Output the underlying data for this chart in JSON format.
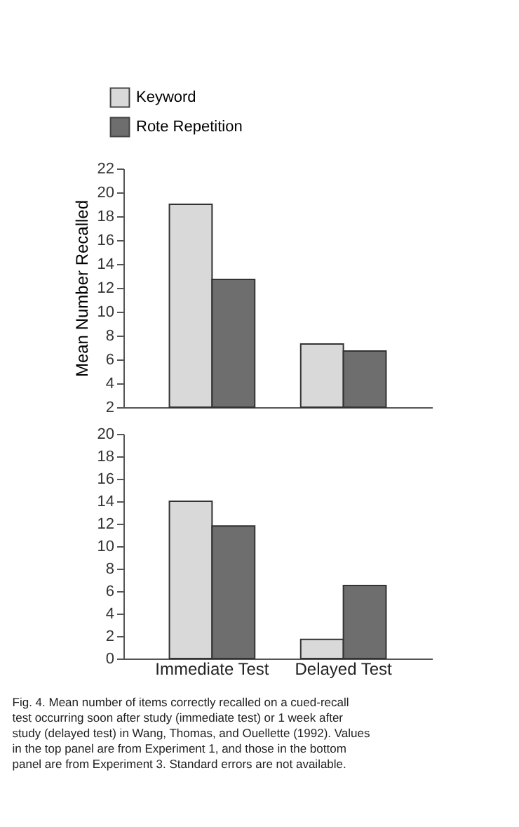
{
  "chart_data": [
    {
      "type": "bar",
      "ylabel": "Mean Number Recalled",
      "categories": [
        null,
        null
      ],
      "series": [
        {
          "name": "Keyword",
          "color": "#d9d9d9",
          "values": [
            19.0,
            7.3
          ]
        },
        {
          "name": "Rote Repetition",
          "color": "#6e6e6e",
          "values": [
            12.7,
            6.7
          ]
        }
      ],
      "ylim": [
        2,
        22
      ],
      "yticks": [
        2,
        4,
        6,
        8,
        10,
        12,
        14,
        16,
        18,
        20,
        22
      ],
      "grid": false,
      "legend": "top left",
      "tick_labels": "y"
    },
    {
      "type": "bar",
      "categories": [
        "Immediate Test",
        "Delayed Test"
      ],
      "series": [
        {
          "name": "Keyword",
          "color": "#d9d9d9",
          "values": [
            14.0,
            1.7
          ]
        },
        {
          "name": "Rote Repetition",
          "color": "#6e6e6e",
          "values": [
            11.8,
            6.5
          ]
        }
      ],
      "ylim": [
        0,
        20
      ],
      "yticks": [
        0,
        2,
        4,
        6,
        8,
        10,
        12,
        14,
        16,
        18,
        20
      ],
      "grid": false,
      "legend": false,
      "annotations": [
        "Fig. 4. Mean number of items correctly recalled on a cued-recall test occurring soon after study (immediate test) or 1 week after study (delayed test) in Wang, Thomas, and Ouellette (1992). Values in the top panel are from Experiment 1, and those in the bottom panel are from Experiment 3. Standard errors are not available."
      ]
    }
  ]
}
